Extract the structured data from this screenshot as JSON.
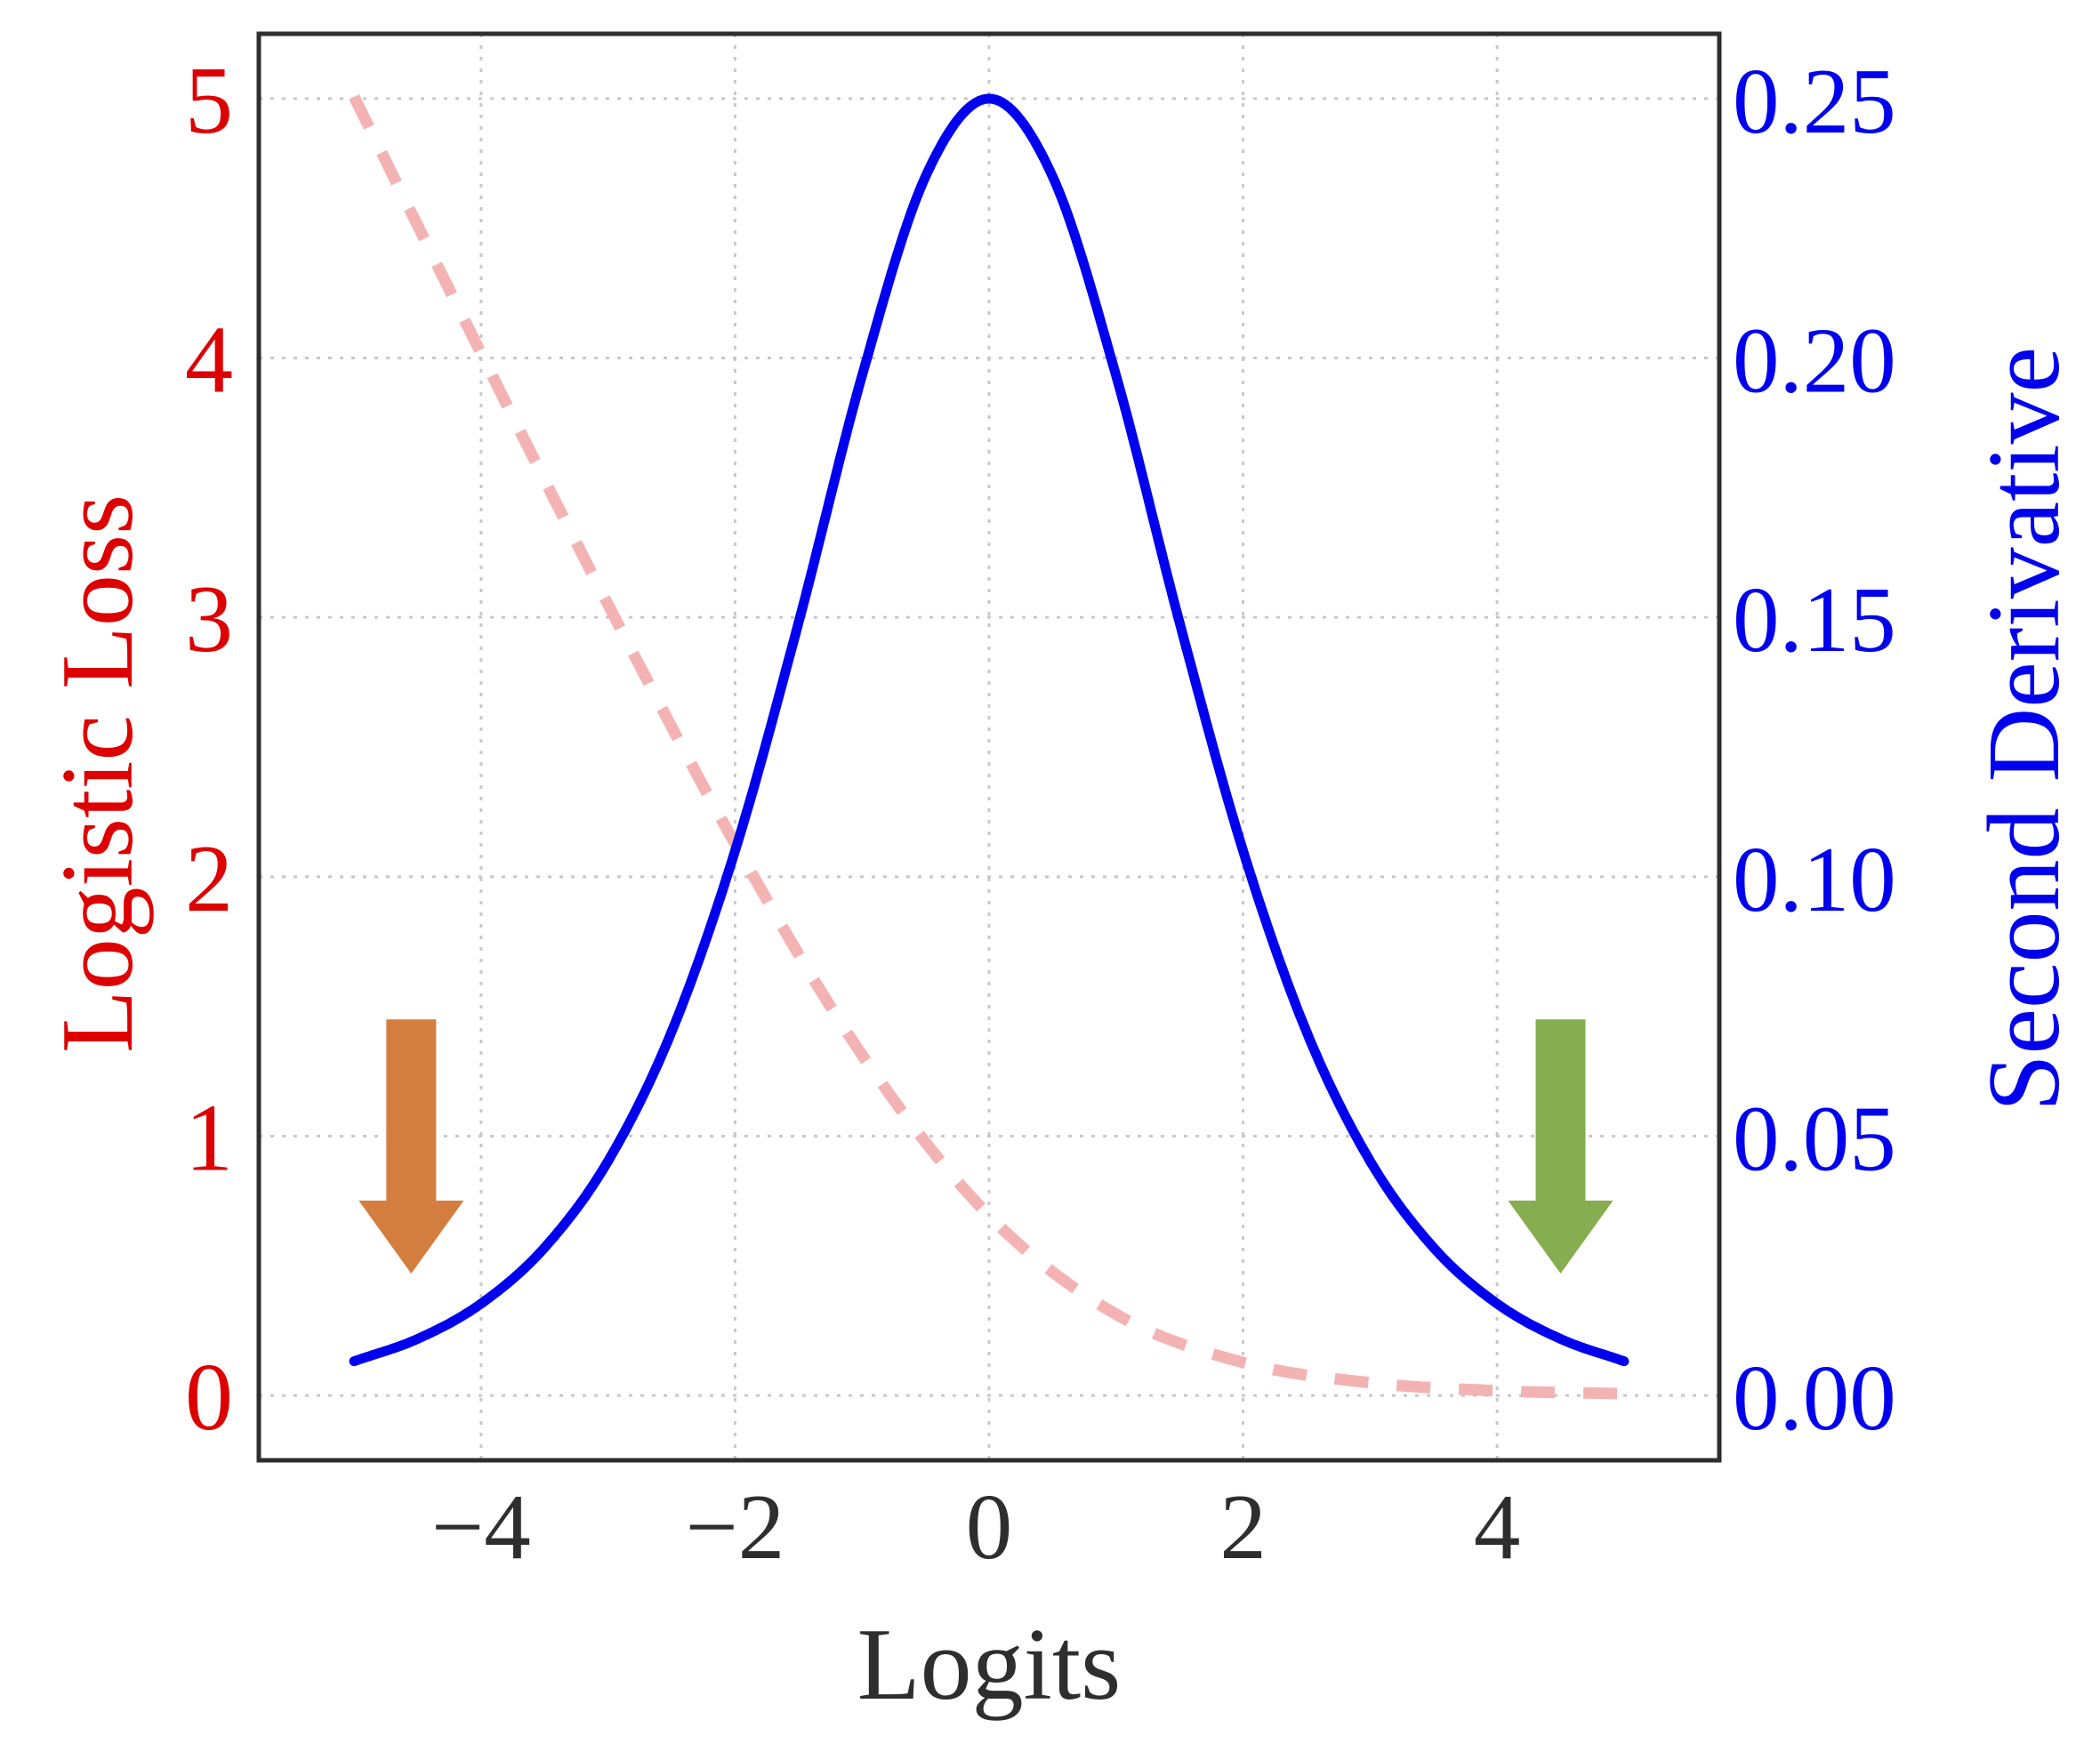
{
  "chart_data": {
    "type": "line",
    "xlabel": "Logits",
    "ylabel_left": "Logistic Loss",
    "ylabel_right": "Second Derivative",
    "xlim": [
      -5.75,
      5.75
    ],
    "ylim_left": [
      -0.25,
      5.25
    ],
    "ylim_right": [
      -0.0125,
      0.2625
    ],
    "x_ticks": [
      -4,
      -2,
      0,
      2,
      4
    ],
    "x_tick_labels": [
      "−4",
      "−2",
      "0",
      "2",
      "4"
    ],
    "y_left_ticks": [
      0,
      1,
      2,
      3,
      4,
      5
    ],
    "y_left_tick_labels": [
      "0",
      "1",
      "2",
      "3",
      "4",
      "5"
    ],
    "y_right_ticks": [
      0.0,
      0.05,
      0.1,
      0.15,
      0.2,
      0.25
    ],
    "y_right_tick_labels": [
      "0.00",
      "0.05",
      "0.10",
      "0.15",
      "0.20",
      "0.25"
    ],
    "grid": true,
    "series": [
      {
        "axis": "left",
        "style": "dashed",
        "color": "#f4b3b3",
        "x": [
          -5,
          -4,
          -3,
          -2,
          -1,
          0,
          1,
          2,
          3,
          4,
          5
        ],
        "values": [
          5.007,
          4.018,
          3.049,
          2.127,
          1.313,
          0.693,
          0.313,
          0.127,
          0.049,
          0.018,
          0.007
        ]
      },
      {
        "axis": "right",
        "style": "solid",
        "color": "#0000ee",
        "x": [
          -5,
          -4.5,
          -4,
          -3.5,
          -3,
          -2.5,
          -2,
          -1.5,
          -1,
          -0.5,
          0,
          0.5,
          1,
          1.5,
          2,
          2.5,
          3,
          3.5,
          4,
          4.5,
          5
        ],
        "values": [
          0.0066,
          0.0109,
          0.0177,
          0.0285,
          0.0452,
          0.0701,
          0.105,
          0.149,
          0.1966,
          0.235,
          0.25,
          0.235,
          0.1966,
          0.149,
          0.105,
          0.0701,
          0.0452,
          0.0285,
          0.0177,
          0.0109,
          0.0066
        ]
      }
    ],
    "annotations": [
      {
        "type": "arrow-down",
        "color": "#d37e3e",
        "x": -4.55,
        "y_from": 1.45,
        "y_to": 0.47
      },
      {
        "type": "arrow-down",
        "color": "#86ad4f",
        "x": 4.5,
        "y_from": 1.45,
        "y_to": 0.47
      }
    ],
    "colors": {
      "left_axis": "#dd0000",
      "right_axis": "#0000ee",
      "x_axis": "#2e2e2e",
      "frame": "#2e2e2e",
      "grid": "#c8c8c8"
    }
  }
}
